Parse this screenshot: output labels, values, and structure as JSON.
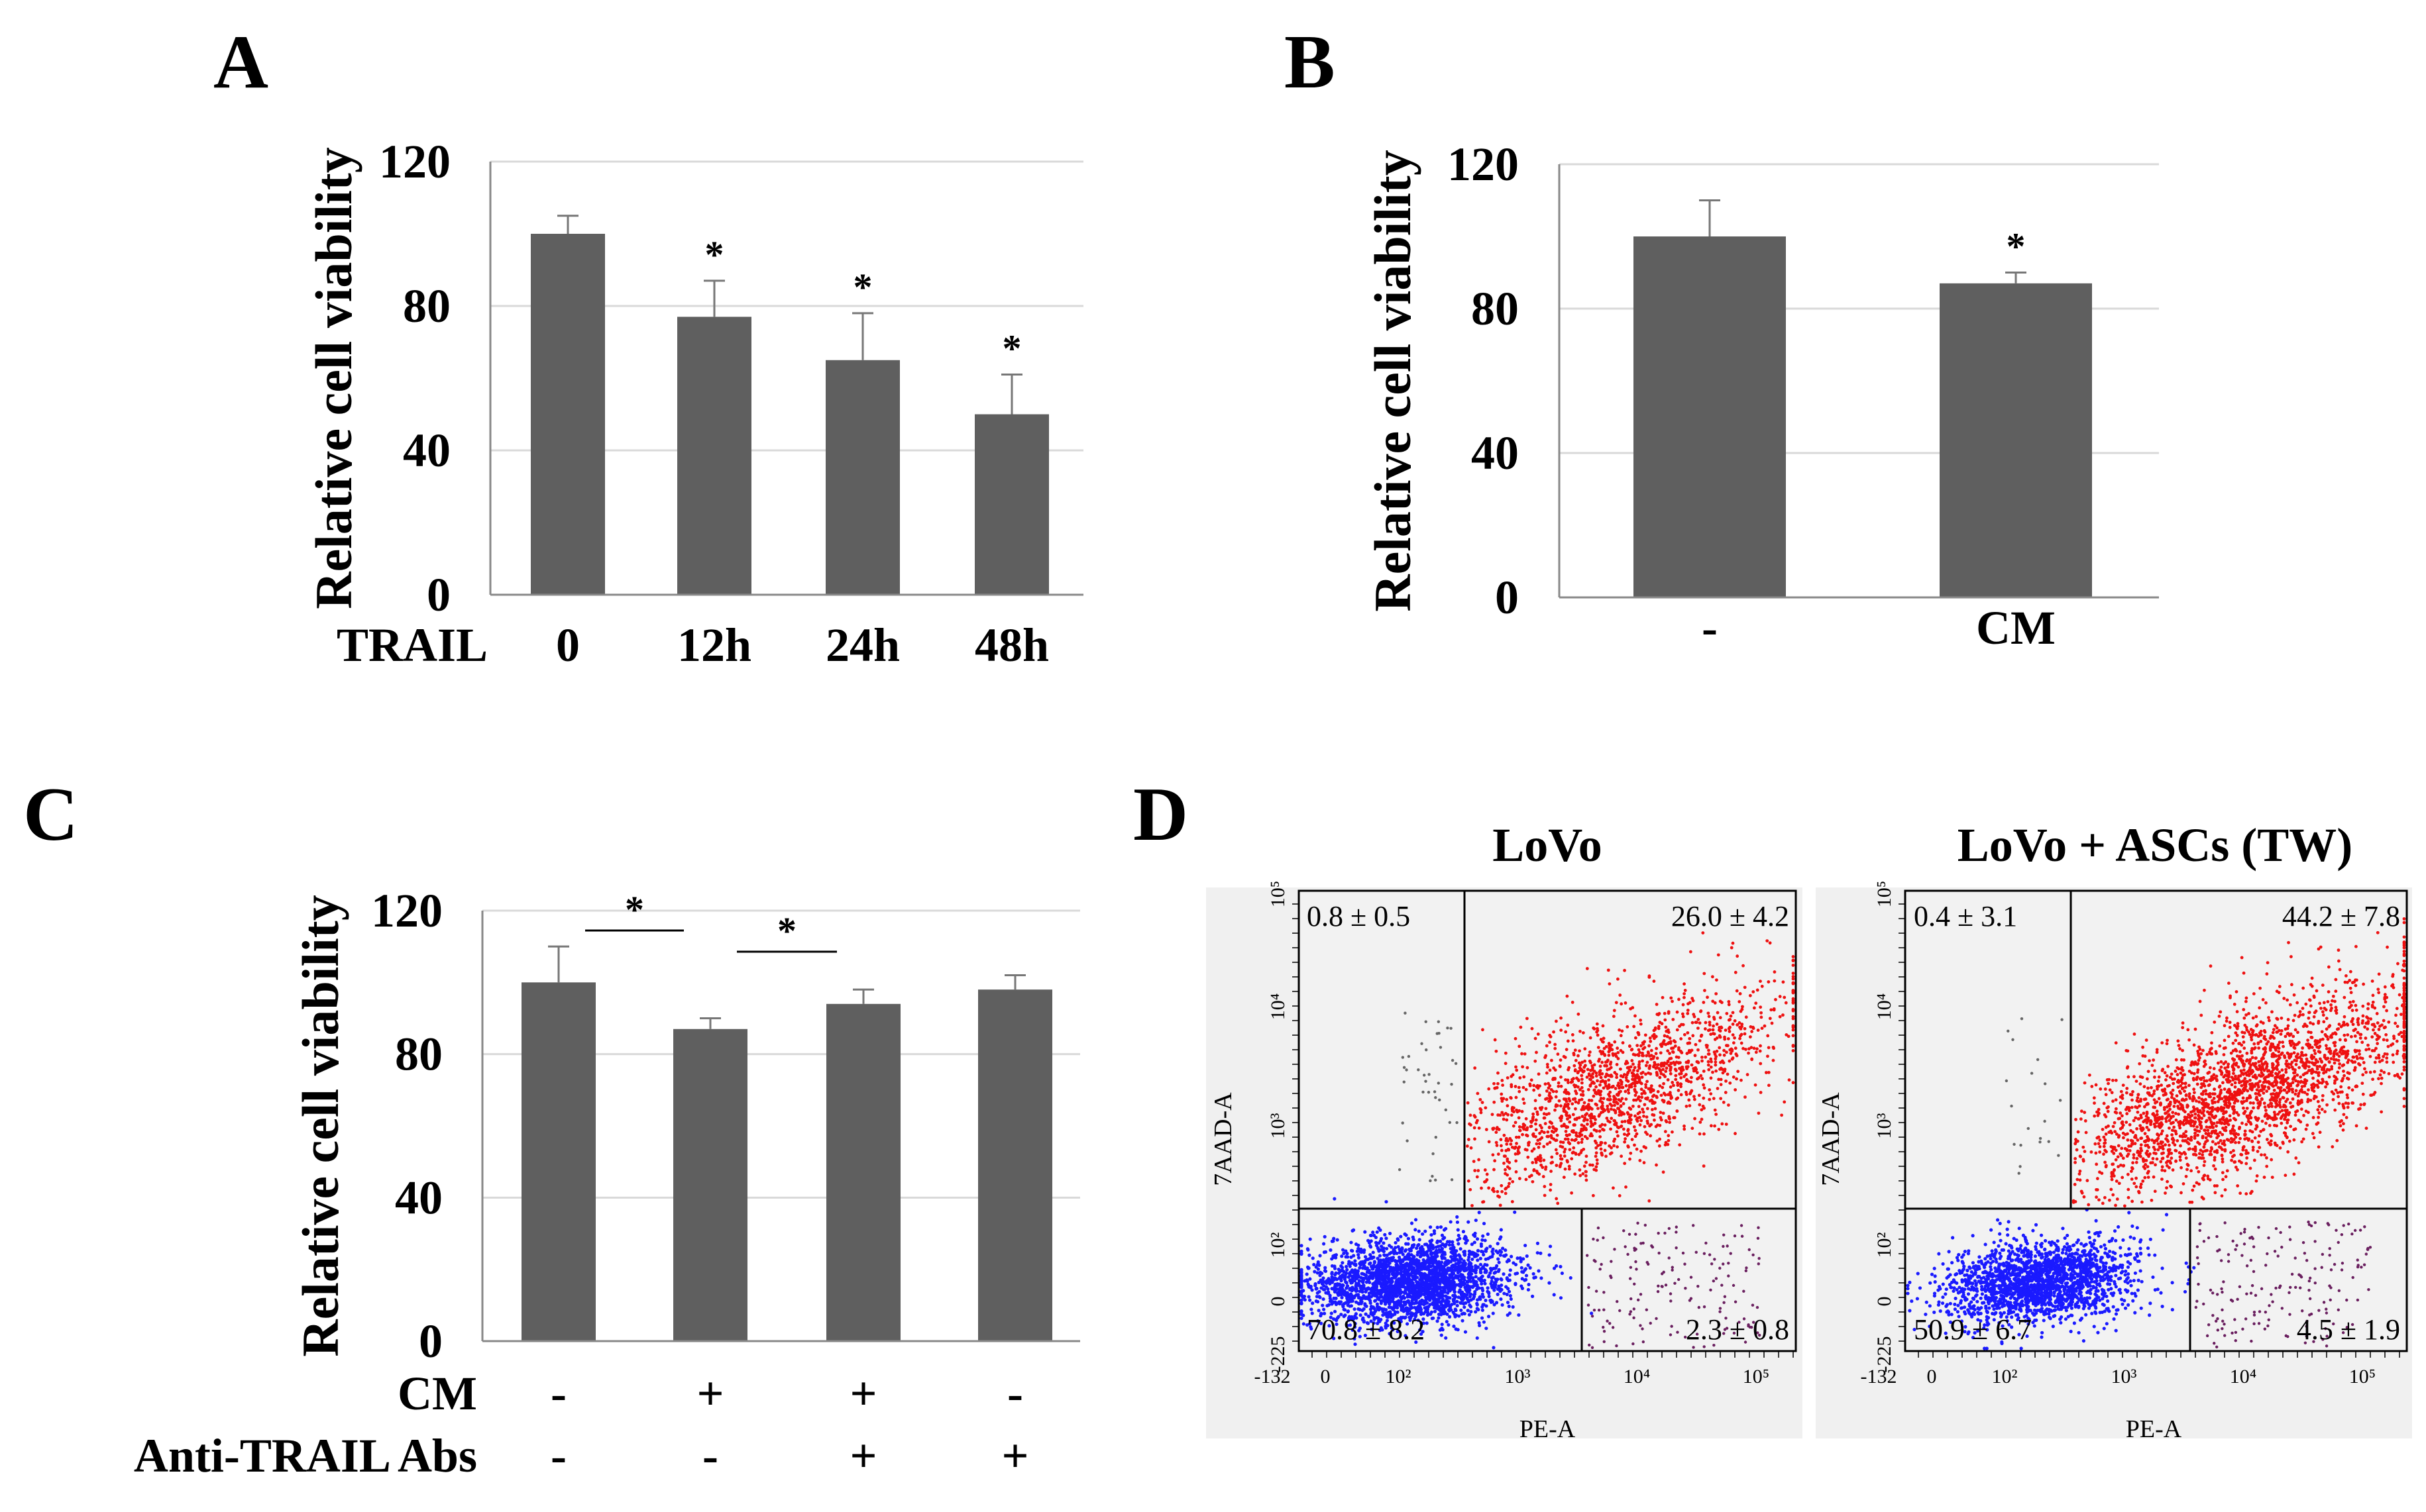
{
  "panels": {
    "A": "A",
    "B": "B",
    "C": "C",
    "D": "D"
  },
  "chart_data": [
    {
      "panel": "A",
      "type": "bar",
      "ylabel": "Relative cell viability",
      "ylim": [
        0,
        120
      ],
      "yticks": [
        0,
        40,
        80,
        120
      ],
      "row_label": "TRAIL",
      "categories": [
        "0",
        "12h",
        "24h",
        "48h"
      ],
      "values": [
        100,
        77,
        65,
        50
      ],
      "errors": [
        5,
        10,
        13,
        11
      ],
      "significance": [
        "",
        "*",
        "*",
        "*"
      ],
      "bar_color": "#5f5f5f",
      "grid": true
    },
    {
      "panel": "B",
      "type": "bar",
      "ylabel": "Relative cell viability",
      "ylim": [
        0,
        120
      ],
      "yticks": [
        0,
        40,
        80,
        120
      ],
      "categories": [
        "-",
        "CM"
      ],
      "values": [
        100,
        87
      ],
      "errors": [
        10,
        3
      ],
      "significance": [
        "",
        "*"
      ],
      "bar_color": "#5f5f5f",
      "grid": true
    },
    {
      "panel": "C",
      "type": "bar",
      "ylabel": "Relative cell viability",
      "ylim": [
        0,
        120
      ],
      "yticks": [
        0,
        40,
        80,
        120
      ],
      "row_labels": [
        "CM",
        "Anti-TRAIL Abs"
      ],
      "rows": [
        [
          "-",
          "+",
          "+",
          "-"
        ],
        [
          "-",
          "-",
          "+",
          "+"
        ]
      ],
      "values": [
        100,
        87,
        94,
        98
      ],
      "errors": [
        10,
        3,
        4,
        4
      ],
      "brackets": [
        {
          "from": 0,
          "to": 1,
          "label": "*"
        },
        {
          "from": 1,
          "to": 2,
          "label": "*"
        }
      ],
      "bar_color": "#5f5f5f",
      "grid": true
    },
    {
      "panel": "D",
      "type": "scatter",
      "xlabel": "PE-A",
      "ylabel": "7AAD-A",
      "x_ticks": [
        "-132",
        "0",
        "10²",
        "10³",
        "10⁴",
        "10⁵"
      ],
      "y_ticks": [
        "-225",
        "0",
        "10²",
        "10³",
        "10⁴",
        "10⁵"
      ],
      "plots": [
        {
          "title": "LoVo",
          "quadrants": {
            "upper_left": "0.8 ± 0.5",
            "upper_right": "26.0 ± 4.2",
            "lower_left": "70.8 ± 8.2",
            "lower_right": "2.3 ± 0.8"
          }
        },
        {
          "title": "LoVo + ASCs (TW)",
          "quadrants": {
            "upper_left": "0.4 ± 3.1",
            "upper_right": "44.2 ± 7.8",
            "lower_left": "50.9 ± 6.7",
            "lower_right": "4.5 ± 1.9"
          }
        }
      ],
      "colors": {
        "live": "#1a1aff",
        "late_apoptotic": "#ee1111",
        "early_apoptotic": "#6a1f5f",
        "debris": "#666666"
      }
    }
  ]
}
